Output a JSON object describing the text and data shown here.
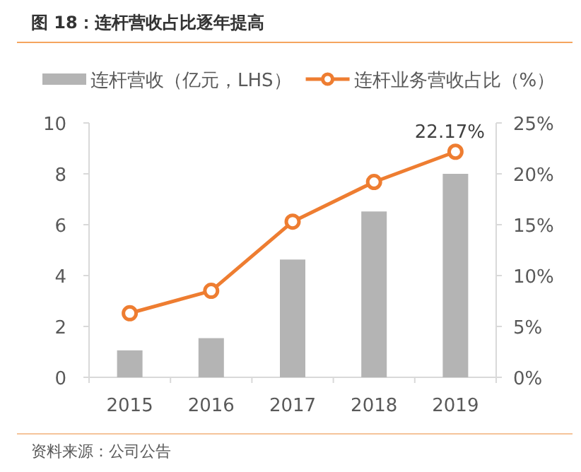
{
  "chart_data": {
    "type": "bar",
    "title": "图 18：连杆营收占比逐年提高",
    "categories": [
      "2015",
      "2016",
      "2017",
      "2018",
      "2019"
    ],
    "series": [
      {
        "name": "连杆营收（亿元，LHS）",
        "color": "#b4b4b4",
        "values": [
          1.06,
          1.54,
          4.63,
          6.52,
          8.0
        ]
      },
      {
        "name": "连杆业务营收占比（%）",
        "type": "line",
        "axis": "y2",
        "color": "#ee7d31",
        "marker": "circle",
        "values": [
          6.3,
          8.5,
          15.3,
          19.2,
          22.17
        ],
        "value_labels": [
          null,
          null,
          null,
          null,
          "22.17%"
        ]
      }
    ],
    "ylim": [
      0,
      10
    ],
    "yticks": [
      0,
      2,
      4,
      6,
      8,
      10
    ],
    "y2lim": [
      0,
      25
    ],
    "y2ticks": [
      {
        "value": 0,
        "label": "0%"
      },
      {
        "value": 5,
        "label": "5%"
      },
      {
        "value": 10,
        "label": "10%"
      },
      {
        "value": 15,
        "label": "15%"
      },
      {
        "value": 20,
        "label": "20%"
      },
      {
        "value": 25,
        "label": "25%"
      }
    ],
    "legend": "top",
    "grid": false,
    "annotations": [
      "资料来源：公司公告"
    ]
  }
}
